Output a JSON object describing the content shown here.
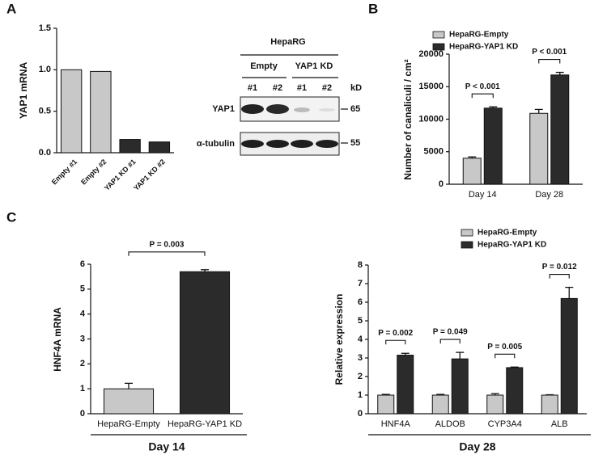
{
  "panel_labels": [
    "A",
    "B",
    "C"
  ],
  "western_blot": {
    "title": "HepaRG",
    "groups": [
      "Empty",
      "YAP1 KD"
    ],
    "lanes": [
      "#1",
      "#2",
      "#1",
      "#2"
    ],
    "unit": "kD",
    "rows": [
      {
        "label": "YAP1",
        "size": 65
      },
      {
        "label": "α-tubulin",
        "size": 55
      }
    ]
  },
  "chart_data": [
    {
      "type": "bar",
      "ylabel": "YAP1 mRNA",
      "categories": [
        "Empty #1",
        "Empty #2",
        "YAP1 KD #1",
        "YAP1 KD #2"
      ],
      "values": [
        1.0,
        0.98,
        0.16,
        0.13
      ],
      "colors": [
        "#c8c8c8",
        "#c8c8c8",
        "#2b2b2b",
        "#2b2b2b"
      ],
      "ylim": [
        0,
        1.5
      ],
      "yticks": [
        {
          "value": 0,
          "label": "0.0"
        },
        0.5,
        {
          "value": 1,
          "label": "1.0"
        },
        1.5
      ]
    },
    {
      "type": "grouped_bar",
      "ylabel": "Number of canaliculi / cm²",
      "categories": [
        "Day 14",
        "Day 28"
      ],
      "series": [
        {
          "name": "HepaRG-Empty",
          "color": "#c8c8c8",
          "values": [
            4000,
            10900
          ],
          "errors": [
            200,
            600
          ]
        },
        {
          "name": "HepaRG-YAP1 KD",
          "color": "#2b2b2b",
          "values": [
            11700,
            16800
          ],
          "errors": [
            200,
            400
          ]
        }
      ],
      "annotations": [
        "P < 0.001",
        "P < 0.001"
      ],
      "ylim": [
        0,
        20000
      ],
      "yticks": [
        0,
        5000,
        10000,
        15000,
        20000
      ],
      "legend": "top"
    },
    {
      "type": "bar",
      "ylabel": "HNF4A mRNA",
      "xlabel": "Day 14",
      "categories": [
        "HepaRG-Empty",
        "HepaRG-YAP1 KD"
      ],
      "values": [
        1.0,
        5.7
      ],
      "errors": [
        0.22,
        0.08
      ],
      "colors": [
        "#c8c8c8",
        "#2b2b2b"
      ],
      "annotations": [
        "P = 0.003"
      ],
      "ylim": [
        0,
        6
      ],
      "yticks": [
        0,
        1,
        2,
        3,
        4,
        5,
        6
      ]
    },
    {
      "type": "grouped_bar",
      "ylabel": "Relative expression",
      "xlabel": "Day 28",
      "categories": [
        "HNF4A",
        "ALDOB",
        "CYP3A4",
        "ALB"
      ],
      "series": [
        {
          "name": "HepaRG-Empty",
          "color": "#c8c8c8",
          "values": [
            1,
            1,
            1,
            1
          ],
          "errors": [
            0.04,
            0.04,
            0.08,
            0.02
          ]
        },
        {
          "name": "HepaRG-YAP1 KD",
          "color": "#2b2b2b",
          "values": [
            3.15,
            2.95,
            2.48,
            6.2
          ],
          "errors": [
            0.1,
            0.35,
            0.03,
            0.6
          ]
        }
      ],
      "annotations": [
        "P = 0.002",
        "P = 0.049",
        "P = 0.005",
        "P = 0.012"
      ],
      "ylim": [
        0,
        8
      ],
      "yticks": [
        0,
        1,
        2,
        3,
        4,
        5,
        6,
        7,
        8
      ],
      "legend": "top"
    }
  ]
}
